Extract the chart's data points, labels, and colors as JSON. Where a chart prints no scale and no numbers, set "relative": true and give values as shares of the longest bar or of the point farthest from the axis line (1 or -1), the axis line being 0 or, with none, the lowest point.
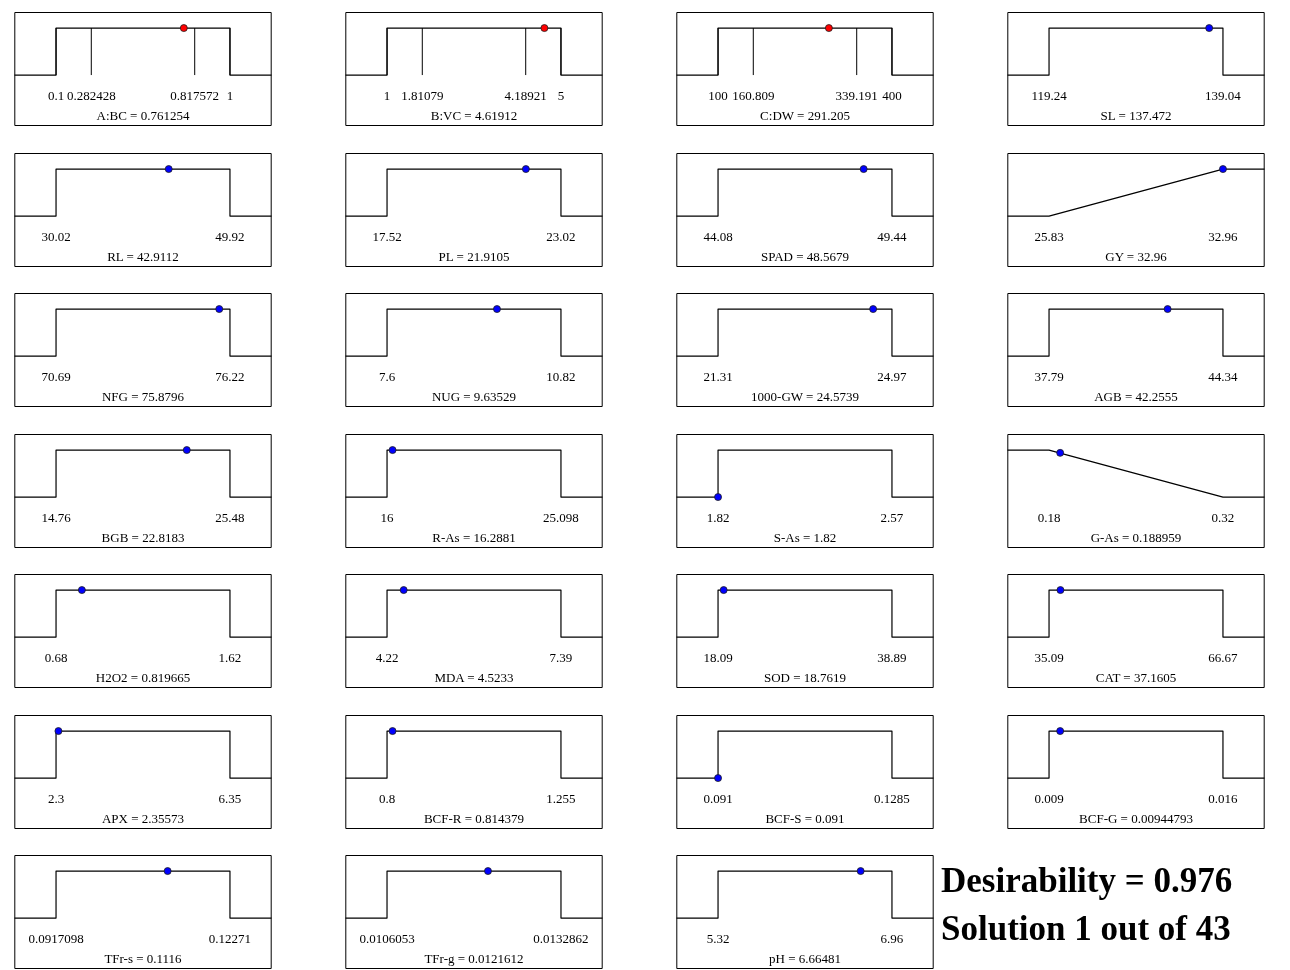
{
  "chart_data": [
    {
      "type": "line",
      "relative": true,
      "xlim": [
        -0.116,
        1.216
      ],
      "xticks": [
        0.1,
        0.282428,
        0.817572,
        1
      ],
      "xlabel": "A:BC = 0.761254",
      "grid": "x",
      "series": [
        {
          "color": "#000000",
          "x": [
            -0.116,
            0.1,
            0.1,
            1,
            1,
            1.216
          ],
          "values": [
            0,
            0,
            1,
            1,
            0,
            0
          ]
        },
        {
          "type": "scatter",
          "color": "#ff0000",
          "x": [
            0.761254
          ],
          "values": [
            1
          ]
        }
      ]
    },
    {
      "type": "line",
      "relative": true,
      "xlim": [
        0.04,
        5.96
      ],
      "xticks": [
        1,
        1.81079,
        4.18921,
        5
      ],
      "xlabel": "B:VC = 4.61912",
      "grid": "x",
      "series": [
        {
          "color": "#000000",
          "x": [
            0.04,
            1,
            1,
            5,
            5,
            5.96
          ],
          "values": [
            0,
            0,
            1,
            1,
            0,
            0
          ]
        },
        {
          "type": "scatter",
          "color": "#ff0000",
          "x": [
            4.61912
          ],
          "values": [
            1
          ]
        }
      ]
    },
    {
      "type": "line",
      "relative": true,
      "xlim": [
        28,
        472
      ],
      "xticks": [
        100,
        160.809,
        339.191,
        400
      ],
      "xlabel": "C:DW = 291.205",
      "grid": "x",
      "series": [
        {
          "color": "#000000",
          "x": [
            28,
            100,
            100,
            400,
            400,
            472
          ],
          "values": [
            0,
            0,
            1,
            1,
            0,
            0
          ]
        },
        {
          "type": "scatter",
          "color": "#ff0000",
          "x": [
            291.205
          ],
          "values": [
            1
          ]
        }
      ]
    },
    {
      "type": "line",
      "relative": true,
      "xlim": [
        114.488,
        143.792
      ],
      "xticks": [
        119.24,
        139.04
      ],
      "xlabel": "SL = 137.472",
      "series": [
        {
          "color": "#000000",
          "x": [
            114.488,
            119.24,
            119.24,
            139.04,
            139.04,
            143.792
          ],
          "values": [
            0,
            0,
            1,
            1,
            0,
            0
          ]
        },
        {
          "type": "scatter",
          "color": "#0000ff",
          "x": [
            137.472
          ],
          "values": [
            1
          ]
        }
      ]
    },
    {
      "type": "line",
      "relative": true,
      "xlim": [
        25.244,
        54.696
      ],
      "xticks": [
        30.02,
        49.92
      ],
      "xlabel": "RL = 42.9112",
      "series": [
        {
          "color": "#000000",
          "x": [
            25.244,
            30.02,
            30.02,
            49.92,
            49.92,
            54.696
          ],
          "values": [
            0,
            0,
            1,
            1,
            0,
            0
          ]
        },
        {
          "type": "scatter",
          "color": "#0000ff",
          "x": [
            42.9112
          ],
          "values": [
            1
          ]
        }
      ]
    },
    {
      "type": "line",
      "relative": true,
      "xlim": [
        16.2,
        24.34
      ],
      "xticks": [
        17.52,
        23.02
      ],
      "xlabel": "PL = 21.9105",
      "series": [
        {
          "color": "#000000",
          "x": [
            16.2,
            17.52,
            17.52,
            23.02,
            23.02,
            24.34
          ],
          "values": [
            0,
            0,
            1,
            1,
            0,
            0
          ]
        },
        {
          "type": "scatter",
          "color": "#0000ff",
          "x": [
            21.9105
          ],
          "values": [
            1
          ]
        }
      ]
    },
    {
      "type": "line",
      "relative": true,
      "xlim": [
        42.7936,
        50.7264
      ],
      "xticks": [
        44.08,
        49.44
      ],
      "xlabel": "SPAD = 48.5679",
      "series": [
        {
          "color": "#000000",
          "x": [
            42.7936,
            44.08,
            44.08,
            49.44,
            49.44,
            50.7264
          ],
          "values": [
            0,
            0,
            1,
            1,
            0,
            0
          ]
        },
        {
          "type": "scatter",
          "color": "#0000ff",
          "x": [
            48.5679
          ],
          "values": [
            1
          ]
        }
      ]
    },
    {
      "type": "line",
      "relative": true,
      "xlim": [
        24.1188,
        34.6712
      ],
      "xticks": [
        25.83,
        32.96
      ],
      "xlabel": "GY = 32.96",
      "series": [
        {
          "color": "#000000",
          "x": [
            24.1188,
            25.83,
            32.96,
            34.6712
          ],
          "values": [
            0,
            0,
            1,
            1
          ]
        },
        {
          "type": "scatter",
          "color": "#0000ff",
          "x": [
            32.96
          ],
          "values": [
            1
          ]
        }
      ]
    },
    {
      "type": "line",
      "relative": true,
      "xlim": [
        69.3628,
        77.5472
      ],
      "xticks": [
        70.69,
        76.22
      ],
      "xlabel": "NFG = 75.8796",
      "series": [
        {
          "color": "#000000",
          "x": [
            69.3628,
            70.69,
            70.69,
            76.22,
            76.22,
            77.5472
          ],
          "values": [
            0,
            0,
            1,
            1,
            0,
            0
          ]
        },
        {
          "type": "scatter",
          "color": "#0000ff",
          "x": [
            75.8796
          ],
          "values": [
            1
          ]
        }
      ]
    },
    {
      "type": "line",
      "relative": true,
      "xlim": [
        6.8272,
        11.5928
      ],
      "xticks": [
        7.6,
        10.82
      ],
      "xlabel": "NUG = 9.63529",
      "series": [
        {
          "color": "#000000",
          "x": [
            6.8272,
            7.6,
            7.6,
            10.82,
            10.82,
            11.5928
          ],
          "values": [
            0,
            0,
            1,
            1,
            0,
            0
          ]
        },
        {
          "type": "scatter",
          "color": "#0000ff",
          "x": [
            9.63529
          ],
          "values": [
            1
          ]
        }
      ]
    },
    {
      "type": "line",
      "relative": true,
      "xlim": [
        20.4316,
        25.8484
      ],
      "xticks": [
        21.31,
        24.97
      ],
      "xlabel": "1000-GW = 24.5739",
      "series": [
        {
          "color": "#000000",
          "x": [
            20.4316,
            21.31,
            21.31,
            24.97,
            24.97,
            25.8484
          ],
          "values": [
            0,
            0,
            1,
            1,
            0,
            0
          ]
        },
        {
          "type": "scatter",
          "color": "#0000ff",
          "x": [
            24.5739
          ],
          "values": [
            1
          ]
        }
      ]
    },
    {
      "type": "line",
      "relative": true,
      "xlim": [
        36.218,
        45.912
      ],
      "xticks": [
        37.79,
        44.34
      ],
      "xlabel": "AGB = 42.2555",
      "series": [
        {
          "color": "#000000",
          "x": [
            36.218,
            37.79,
            37.79,
            44.34,
            44.34,
            45.912
          ],
          "values": [
            0,
            0,
            1,
            1,
            0,
            0
          ]
        },
        {
          "type": "scatter",
          "color": "#0000ff",
          "x": [
            42.2555
          ],
          "values": [
            1
          ]
        }
      ]
    },
    {
      "type": "line",
      "relative": true,
      "xlim": [
        12.1872,
        28.0528
      ],
      "xticks": [
        14.76,
        25.48
      ],
      "xlabel": "BGB = 22.8183",
      "series": [
        {
          "color": "#000000",
          "x": [
            12.1872,
            14.76,
            14.76,
            25.48,
            25.48,
            28.0528
          ],
          "values": [
            0,
            0,
            1,
            1,
            0,
            0
          ]
        },
        {
          "type": "scatter",
          "color": "#0000ff",
          "x": [
            22.8183
          ],
          "values": [
            1
          ]
        }
      ]
    },
    {
      "type": "line",
      "relative": true,
      "xlim": [
        13.81648,
        27.28152
      ],
      "xticks": [
        16,
        25.098
      ],
      "xlabel": "R-As = 16.2881",
      "series": [
        {
          "color": "#000000",
          "x": [
            13.81648,
            16,
            16,
            25.098,
            25.098,
            27.28152
          ],
          "values": [
            0,
            0,
            1,
            1,
            0,
            0
          ]
        },
        {
          "type": "scatter",
          "color": "#0000ff",
          "x": [
            16.2881
          ],
          "values": [
            1
          ]
        }
      ]
    },
    {
      "type": "line",
      "relative": true,
      "xlim": [
        1.64,
        2.75
      ],
      "xticks": [
        1.82,
        2.57
      ],
      "xlabel": "S-As = 1.82",
      "series": [
        {
          "color": "#000000",
          "x": [
            1.64,
            1.82,
            1.82,
            2.57,
            2.57,
            2.75
          ],
          "values": [
            0,
            0,
            1,
            1,
            0,
            0
          ]
        },
        {
          "type": "scatter",
          "color": "#0000ff",
          "x": [
            1.82
          ],
          "values": [
            0
          ]
        }
      ]
    },
    {
      "type": "line",
      "relative": true,
      "xlim": [
        0.1464,
        0.3536
      ],
      "xticks": [
        0.18,
        0.32
      ],
      "xlabel": "G-As = 0.188959",
      "series": [
        {
          "color": "#000000",
          "x": [
            0.1464,
            0.18,
            0.32,
            0.3536
          ],
          "values": [
            1,
            1,
            0,
            0
          ]
        },
        {
          "type": "scatter",
          "color": "#0000ff",
          "x": [
            0.188959
          ],
          "values": [
            0.94
          ]
        }
      ]
    },
    {
      "type": "line",
      "relative": true,
      "xlim": [
        0.4544,
        1.8456
      ],
      "xticks": [
        0.68,
        1.62
      ],
      "xlabel": "H2O2 = 0.819665",
      "series": [
        {
          "color": "#000000",
          "x": [
            0.4544,
            0.68,
            0.68,
            1.62,
            1.62,
            1.8456
          ],
          "values": [
            0,
            0,
            1,
            1,
            0,
            0
          ]
        },
        {
          "type": "scatter",
          "color": "#0000ff",
          "x": [
            0.819665
          ],
          "values": [
            1
          ]
        }
      ]
    },
    {
      "type": "line",
      "relative": true,
      "xlim": [
        3.4592,
        8.1508
      ],
      "xticks": [
        4.22,
        7.39
      ],
      "xlabel": "MDA = 4.5233",
      "series": [
        {
          "color": "#000000",
          "x": [
            3.4592,
            4.22,
            4.22,
            7.39,
            7.39,
            8.1508
          ],
          "values": [
            0,
            0,
            1,
            1,
            0,
            0
          ]
        },
        {
          "type": "scatter",
          "color": "#0000ff",
          "x": [
            4.5233
          ],
          "values": [
            1
          ]
        }
      ]
    },
    {
      "type": "line",
      "relative": true,
      "xlim": [
        13.098,
        43.882
      ],
      "xticks": [
        18.09,
        38.89
      ],
      "xlabel": "SOD = 18.7619",
      "series": [
        {
          "color": "#000000",
          "x": [
            13.098,
            18.09,
            18.09,
            38.89,
            38.89,
            43.882
          ],
          "values": [
            0,
            0,
            1,
            1,
            0,
            0
          ]
        },
        {
          "type": "scatter",
          "color": "#0000ff",
          "x": [
            18.7619
          ],
          "values": [
            1
          ]
        }
      ]
    },
    {
      "type": "line",
      "relative": true,
      "xlim": [
        27.5108,
        74.2492
      ],
      "xticks": [
        35.09,
        66.67
      ],
      "xlabel": "CAT = 37.1605",
      "series": [
        {
          "color": "#000000",
          "x": [
            27.5108,
            35.09,
            35.09,
            66.67,
            66.67,
            74.2492
          ],
          "values": [
            0,
            0,
            1,
            1,
            0,
            0
          ]
        },
        {
          "type": "scatter",
          "color": "#0000ff",
          "x": [
            37.1605
          ],
          "values": [
            1
          ]
        }
      ]
    },
    {
      "type": "line",
      "relative": true,
      "xlim": [
        1.328,
        7.322
      ],
      "xticks": [
        2.3,
        6.35
      ],
      "xlabel": "APX = 2.35573",
      "series": [
        {
          "color": "#000000",
          "x": [
            1.328,
            2.3,
            2.3,
            6.35,
            6.35,
            7.322
          ],
          "values": [
            0,
            0,
            1,
            1,
            0,
            0
          ]
        },
        {
          "type": "scatter",
          "color": "#0000ff",
          "x": [
            2.35573
          ],
          "values": [
            1
          ]
        }
      ]
    },
    {
      "type": "line",
      "relative": true,
      "xlim": [
        0.6908,
        1.3642
      ],
      "xticks": [
        0.8,
        1.255
      ],
      "xlabel": "BCF-R = 0.814379",
      "series": [
        {
          "color": "#000000",
          "x": [
            0.6908,
            0.8,
            0.8,
            1.255,
            1.255,
            1.3642
          ],
          "values": [
            0,
            0,
            1,
            1,
            0,
            0
          ]
        },
        {
          "type": "scatter",
          "color": "#0000ff",
          "x": [
            0.814379
          ],
          "values": [
            1
          ]
        }
      ]
    },
    {
      "type": "line",
      "relative": true,
      "xlim": [
        0.082,
        0.1375
      ],
      "xticks": [
        0.091,
        0.1285
      ],
      "xlabel": "BCF-S = 0.091",
      "series": [
        {
          "color": "#000000",
          "x": [
            0.082,
            0.091,
            0.091,
            0.1285,
            0.1285,
            0.1375
          ],
          "values": [
            0,
            0,
            1,
            1,
            0,
            0
          ]
        },
        {
          "type": "scatter",
          "color": "#0000ff",
          "x": [
            0.091
          ],
          "values": [
            0
          ]
        }
      ]
    },
    {
      "type": "line",
      "relative": true,
      "xlim": [
        0.00732,
        0.01768
      ],
      "xticks": [
        0.009,
        0.016
      ],
      "xlabel": "BCF-G = 0.00944793",
      "series": [
        {
          "color": "#000000",
          "x": [
            0.00732,
            0.009,
            0.009,
            0.016,
            0.016,
            0.01768
          ],
          "values": [
            0,
            0,
            1,
            1,
            0,
            0
          ]
        },
        {
          "type": "scatter",
          "color": "#0000ff",
          "x": [
            0.00944793
          ],
          "values": [
            1
          ]
        }
      ]
    },
    {
      "type": "line",
      "relative": true,
      "xlim": [
        0.0842698,
        0.13015
      ],
      "xticks": [
        0.0917098,
        0.12271
      ],
      "xlabel": "TFr-s = 0.1116",
      "series": [
        {
          "color": "#000000",
          "x": [
            0.0842698,
            0.0917098,
            0.0917098,
            0.12271,
            0.12271,
            0.13015
          ],
          "values": [
            0,
            0,
            1,
            1,
            0,
            0
          ]
        },
        {
          "type": "scatter",
          "color": "#0000ff",
          "x": [
            0.1116
          ],
          "values": [
            1
          ]
        }
      ]
    },
    {
      "type": "line",
      "relative": true,
      "xlim": [
        0.0099623,
        0.0139292
      ],
      "xticks": [
        0.0106053,
        0.0132862
      ],
      "xlabel": "TFr-g = 0.0121612",
      "series": [
        {
          "color": "#000000",
          "x": [
            0.0099623,
            0.0106053,
            0.0106053,
            0.0132862,
            0.0132862,
            0.0139292
          ],
          "values": [
            0,
            0,
            1,
            1,
            0,
            0
          ]
        },
        {
          "type": "scatter",
          "color": "#0000ff",
          "x": [
            0.0121612
          ],
          "values": [
            1
          ]
        }
      ]
    },
    {
      "type": "line",
      "relative": true,
      "xlim": [
        4.9264,
        7.3536
      ],
      "xticks": [
        5.32,
        6.96
      ],
      "xlabel": "pH = 6.66481",
      "series": [
        {
          "color": "#000000",
          "x": [
            4.9264,
            5.32,
            5.32,
            6.96,
            6.96,
            7.3536
          ],
          "values": [
            0,
            0,
            1,
            1,
            0,
            0
          ]
        },
        {
          "type": "scatter",
          "color": "#0000ff",
          "x": [
            6.66481
          ],
          "values": [
            1
          ]
        }
      ]
    },
    {
      "type": "other",
      "annotations": [
        "Desirability = 0.976",
        "Solution 1 out of 43"
      ]
    }
  ]
}
